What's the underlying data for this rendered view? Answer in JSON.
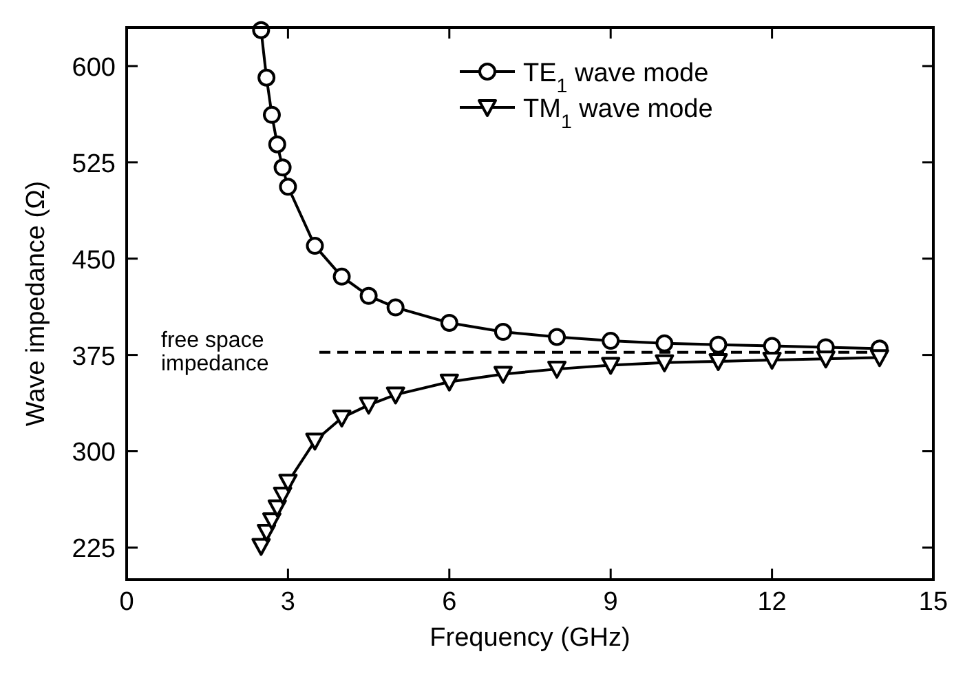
{
  "chart_data": {
    "type": "line",
    "xlabel": "Frequency (GHz)",
    "ylabel": "Wave impedance (Ω)",
    "xlim": [
      0,
      15
    ],
    "xticks": [
      0,
      3,
      6,
      9,
      12,
      15
    ],
    "ylim": [
      200,
      630
    ],
    "yticks": [
      225,
      300,
      375,
      450,
      525,
      600
    ],
    "legend": "top right",
    "grid": false,
    "line_style": "solid",
    "ref_lines": [
      {
        "axis": "y",
        "value": 377,
        "label": "free space\nimpedance",
        "line_style": "dashed"
      }
    ],
    "series": [
      {
        "name": "TE$_{1}$ wave mode",
        "color": "#000000",
        "marker": "circle",
        "x": [
          2.5,
          2.6,
          2.7,
          2.8,
          2.9,
          3,
          3.5,
          4,
          4.5,
          5,
          6,
          7,
          8,
          9,
          10,
          11,
          12,
          13,
          14
        ],
        "values": [
          628,
          591,
          562,
          539,
          521,
          506,
          460,
          436,
          421,
          412,
          400,
          393,
          389,
          386,
          384,
          383,
          382,
          381,
          380
        ]
      },
      {
        "name": "TM$_{1}$ wave mode",
        "color": "#000000",
        "marker": "triangle",
        "x": [
          2.5,
          2.6,
          2.7,
          2.8,
          2.9,
          3,
          3.5,
          4,
          4.5,
          5,
          6,
          7,
          8,
          9,
          10,
          11,
          12,
          13,
          14
        ],
        "values": [
          226,
          237,
          246,
          256,
          266,
          276,
          308,
          326,
          336,
          344,
          354,
          360,
          364,
          367,
          369,
          370,
          371,
          372,
          373
        ]
      }
    ]
  }
}
